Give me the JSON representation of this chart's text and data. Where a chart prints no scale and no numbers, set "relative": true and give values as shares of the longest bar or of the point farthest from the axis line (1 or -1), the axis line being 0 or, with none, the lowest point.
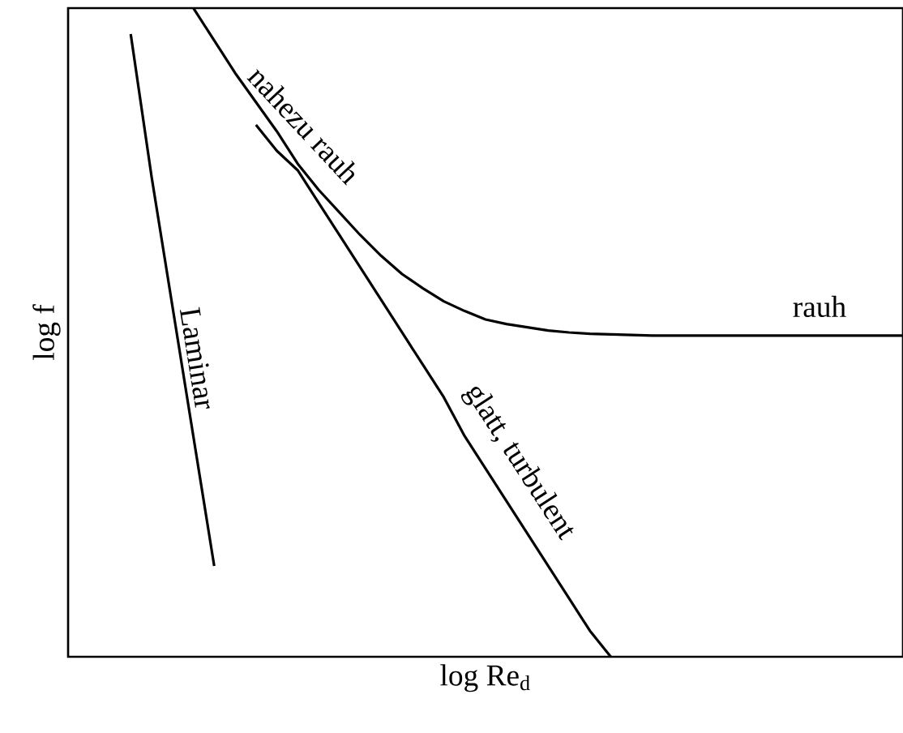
{
  "chart_data": {
    "type": "line",
    "relative": true,
    "xlabel": "log Re$_{d}$",
    "ylabel": "log f",
    "categories": [
      null,
      null,
      null,
      null,
      null,
      null,
      null,
      null,
      null,
      null,
      null,
      null,
      null,
      null,
      null,
      null,
      null,
      null,
      null,
      null,
      null,
      null,
      null,
      null,
      null,
      null,
      null,
      null,
      null,
      null,
      null,
      null,
      null,
      null,
      null,
      null,
      null,
      null,
      null,
      null,
      null
    ],
    "series": [
      {
        "name": "Laminar",
        "color": "#000000",
        "values": [
          null,
          null,
          null,
          0.96,
          0.74,
          0.54,
          0.34,
          0.14,
          null,
          null,
          null,
          null,
          null,
          null,
          null,
          null,
          null,
          null,
          null,
          null,
          null,
          null,
          null,
          null,
          null,
          null,
          null,
          null,
          null,
          null,
          null,
          null,
          null,
          null,
          null,
          null,
          null,
          null,
          null,
          null,
          null
        ]
      },
      {
        "name": "glatt, turbulent",
        "color": "#000000",
        "values": [
          null,
          null,
          null,
          null,
          null,
          null,
          null,
          null,
          null,
          0.82,
          0.78,
          0.75,
          0.7,
          0.65,
          0.6,
          0.55,
          0.5,
          0.45,
          0.4,
          0.34,
          0.29,
          0.24,
          0.19,
          0.14,
          0.09,
          0.04,
          0.0,
          null,
          null,
          null,
          null,
          null,
          null,
          null,
          null,
          null,
          null,
          null,
          null,
          null,
          null
        ]
      },
      {
        "name": "rauh",
        "color": "#000000",
        "values": [
          null,
          null,
          null,
          null,
          null,
          null,
          1.0,
          0.95,
          0.9,
          0.855,
          0.81,
          0.76,
          0.72,
          0.685,
          0.65,
          0.618,
          0.59,
          0.568,
          0.548,
          0.533,
          0.52,
          0.513,
          0.508,
          0.503,
          0.5,
          0.498,
          0.497,
          0.496,
          0.495,
          0.495,
          0.495,
          0.495,
          0.495,
          0.495,
          0.495,
          0.495,
          0.495,
          0.495,
          0.495,
          0.495,
          0.495
        ]
      }
    ],
    "annotations": [
      "nahezu rauh"
    ],
    "marker": "none",
    "line_style": "solid"
  }
}
